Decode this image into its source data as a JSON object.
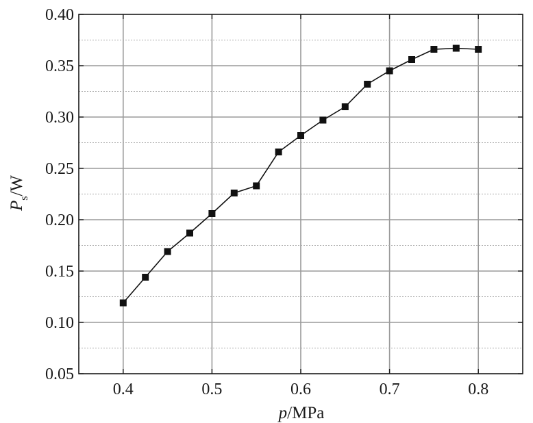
{
  "chart_data": {
    "type": "line",
    "title": "",
    "xlabel_italic": "p",
    "xlabel_rest": "/MPa",
    "ylabel_italic": "P",
    "ylabel_sub": "s",
    "ylabel_rest": "/W",
    "xlim": [
      0.35,
      0.85
    ],
    "ylim": [
      0.05,
      0.4
    ],
    "x_ticks": [
      0.4,
      0.5,
      0.6,
      0.7,
      0.8
    ],
    "x_tick_labels": [
      "0.4",
      "0.5",
      "0.6",
      "0.7",
      "0.8"
    ],
    "y_ticks": [
      0.05,
      0.1,
      0.15,
      0.2,
      0.25,
      0.3,
      0.35,
      0.4
    ],
    "y_tick_labels": [
      "0.05",
      "0.10",
      "0.15",
      "0.20",
      "0.25",
      "0.30",
      "0.35",
      "0.40"
    ],
    "grid": true,
    "marker": "square",
    "series": [
      {
        "x": [
          0.4,
          0.425,
          0.45,
          0.475,
          0.5,
          0.525,
          0.55,
          0.575,
          0.6,
          0.625,
          0.65,
          0.675,
          0.7,
          0.725,
          0.75,
          0.775,
          0.8
        ],
        "y": [
          0.119,
          0.144,
          0.169,
          0.187,
          0.206,
          0.226,
          0.233,
          0.266,
          0.282,
          0.297,
          0.31,
          0.332,
          0.345,
          0.356,
          0.366,
          0.367,
          0.366
        ]
      }
    ]
  }
}
